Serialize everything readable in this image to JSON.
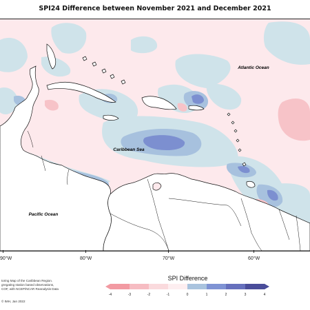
{
  "title": "SPI24 Difference between November 2021 and December 2021",
  "map_labels": {
    "atlantic": "Atlantic Ocean",
    "caribbean": "Caribbean Sea",
    "pacific": "Pacific Ocean"
  },
  "longitude_labels": [
    "90°W",
    "80°W",
    "70°W",
    "60°W"
  ],
  "notes": [
    "toring Map of the Caribbean Region.",
    "gregating station based observations,",
    "COF, with NCEP/NCAR Reanalysis Data"
  ],
  "credit": "© IMH, Jan 2022",
  "legend": {
    "title": "SPI Difference",
    "ticks": [
      "-4",
      "-3",
      "-2",
      "-1",
      "0",
      "1",
      "2",
      "3",
      "4"
    ],
    "colors": [
      "#f29aa2",
      "#f6bcc2",
      "#fadadd",
      "#fdeef0",
      "#d3e6ec",
      "#a9c3de",
      "#7f93d4",
      "#6670bd",
      "#4a4d9a"
    ]
  }
}
